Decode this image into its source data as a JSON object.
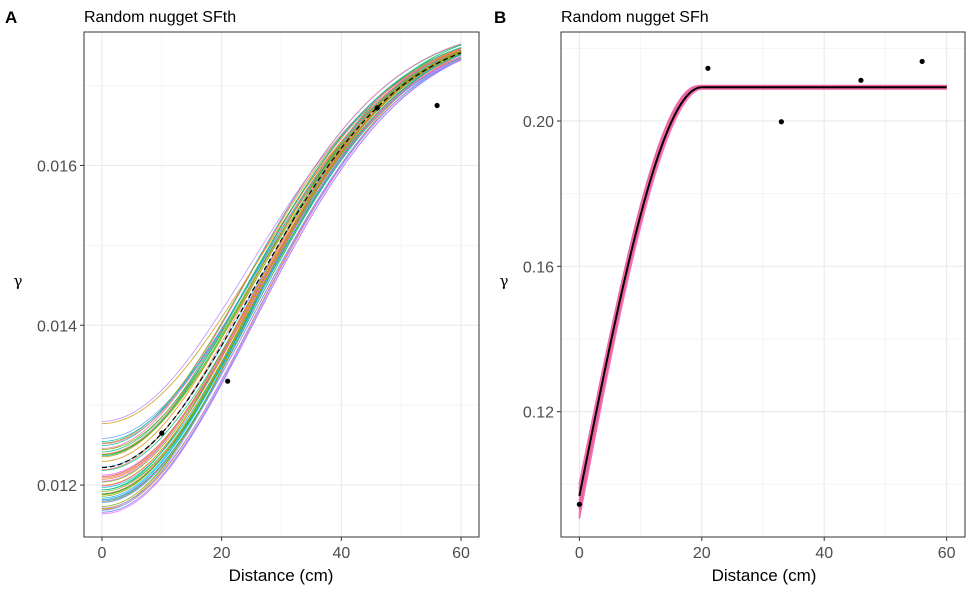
{
  "chart_data": [
    {
      "type": "line",
      "panel_label": "A",
      "title": "Random nugget SFth",
      "xlabel": "Distance (cm)",
      "ylabel": "γ",
      "xlim": [
        -3,
        63
      ],
      "ylim": [
        0.01135,
        0.01767
      ],
      "xticks": [
        "0",
        "20",
        "40",
        "60"
      ],
      "yticks": [
        "0.012",
        "0.014",
        "0.016"
      ],
      "grid": true,
      "model": {
        "kind": "gaussian",
        "range": 35,
        "nugget_center": 0.01222,
        "sill_center": 0.0177,
        "nugget_min": 0.0116,
        "nugget_max": 0.01282,
        "sill_min": 0.01765,
        "sill_max": 0.01778,
        "n_simulations": 50
      },
      "fitted_line_color": "#000000",
      "points": [
        {
          "x": 10,
          "y": 0.01265
        },
        {
          "x": 21,
          "y": 0.0133
        },
        {
          "x": 46,
          "y": 0.01672
        },
        {
          "x": 56,
          "y": 0.01675
        }
      ]
    },
    {
      "type": "line",
      "panel_label": "B",
      "title": "Random nugget SFh",
      "xlabel": "Distance (cm)",
      "ylabel": "γ",
      "xlim": [
        -3,
        63
      ],
      "ylim": [
        0.0855,
        0.2245
      ],
      "xticks": [
        "0",
        "20",
        "40",
        "60"
      ],
      "yticks": [
        "0.12",
        "0.16",
        "0.20"
      ],
      "grid": true,
      "model": {
        "kind": "spherical",
        "range": 20,
        "nugget_center": 0.0968,
        "sill_center": 0.2093,
        "nugget_min": 0.0905,
        "nugget_max": 0.1005,
        "sill_min": 0.2088,
        "sill_max": 0.2098,
        "n_simulations": 50
      },
      "fitted_line_color": "#000000",
      "points": [
        {
          "x": 0,
          "y": 0.0945
        },
        {
          "x": 21,
          "y": 0.2145
        },
        {
          "x": 33,
          "y": 0.1998
        },
        {
          "x": 46,
          "y": 0.2112
        },
        {
          "x": 56,
          "y": 0.2164
        }
      ]
    }
  ],
  "colors": {
    "panel_border": "#333333",
    "grid_major": "#ebebeb",
    "grid_minor": "#f5f5f5",
    "point": "#000000",
    "sim_palette": [
      "#F8766D",
      "#E58700",
      "#C99800",
      "#A3A500",
      "#6BB100",
      "#00BA38",
      "#00BF7D",
      "#00C0AF",
      "#00BCD8",
      "#00B0F6",
      "#619CFF",
      "#B983FF",
      "#E76BF3",
      "#FD61D1",
      "#FF67A4"
    ],
    "sim_palette_b": [
      "#FF69B4",
      "#FF6EB4",
      "#F06292",
      "#FF77C0",
      "#E8609E"
    ]
  }
}
